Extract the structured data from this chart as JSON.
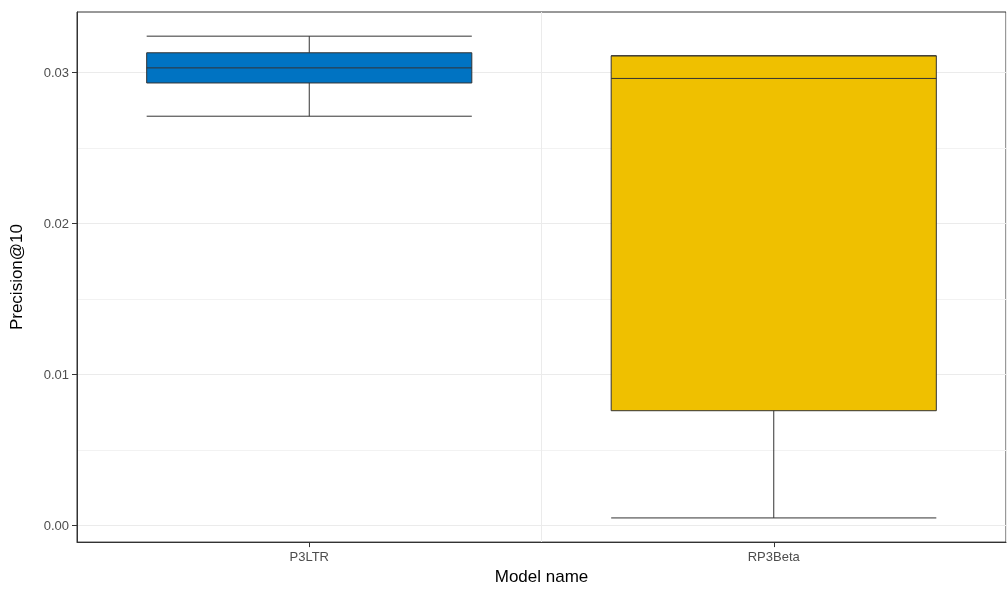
{
  "chart_data": {
    "type": "box",
    "xlabel": "Model name",
    "ylabel": "Precision@10",
    "categories": [
      "P3LTR",
      "RP3Beta"
    ],
    "series": [
      {
        "color": "#0073c2",
        "boxes": [
          {
            "low": 0.0271,
            "q1": 0.0293,
            "median": 0.0303,
            "q3": 0.0313,
            "high": 0.0324
          },
          null
        ]
      },
      {
        "color": "#efc000",
        "boxes": [
          null,
          {
            "low": 0.0005,
            "q1": 0.0076,
            "median": 0.0296,
            "q3": 0.0311,
            "high": 0.0311
          }
        ]
      }
    ],
    "ylim": [
      -0.0011,
      0.034
    ],
    "yticks": [
      {
        "value": 0,
        "label": "0.00"
      },
      {
        "value": 0.01,
        "label": "0.01"
      },
      {
        "value": 0.02,
        "label": "0.02"
      },
      {
        "value": 0.03,
        "label": "0.03"
      }
    ],
    "grid": true
  }
}
